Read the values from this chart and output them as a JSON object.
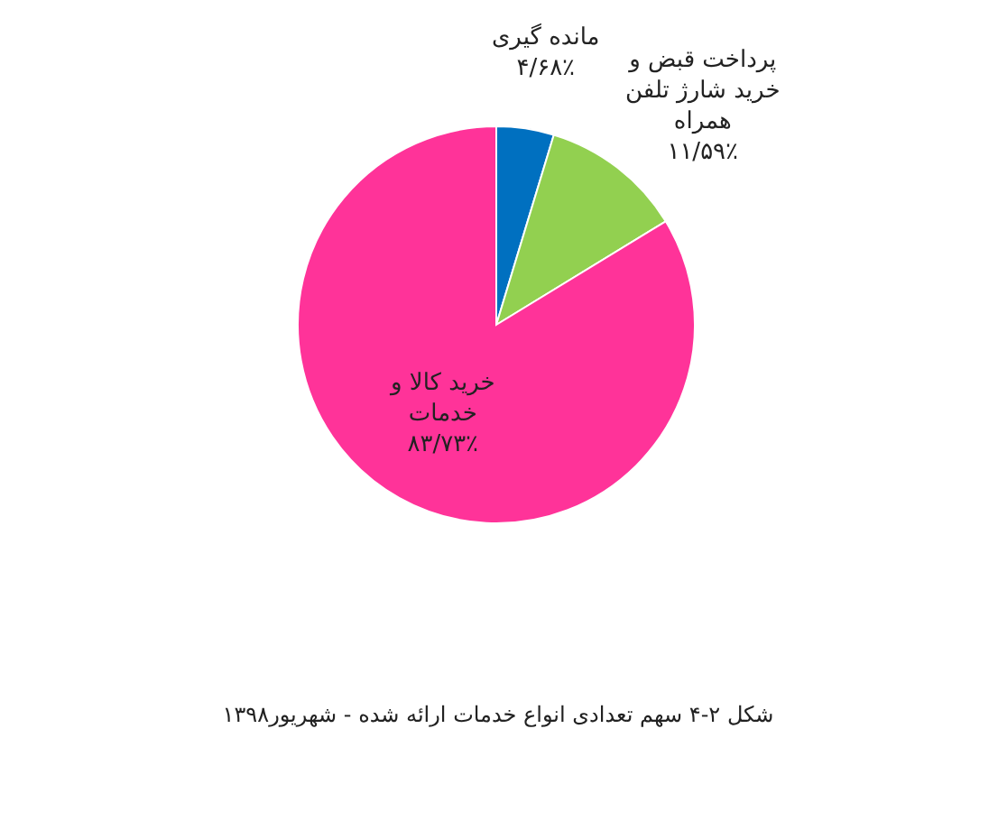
{
  "chart_data": {
    "type": "pie",
    "title": "شکل ۲-۴ سهم تعدادی انواع خدمات ارائه شده - شهریور۱۳۹۸",
    "categories": [
      "مانده گیری",
      "پرداخت قبض و خرید شارژ تلفن همراه",
      "خرید کالا و خدمات"
    ],
    "values": [
      4.68,
      11.59,
      83.73
    ],
    "value_labels": [
      "۴/۶۸٪",
      "۱۱/۵۹٪",
      "۸۳/۷۳٪"
    ],
    "colors": [
      "#0070c0",
      "#92d050",
      "#ff3399"
    ]
  }
}
